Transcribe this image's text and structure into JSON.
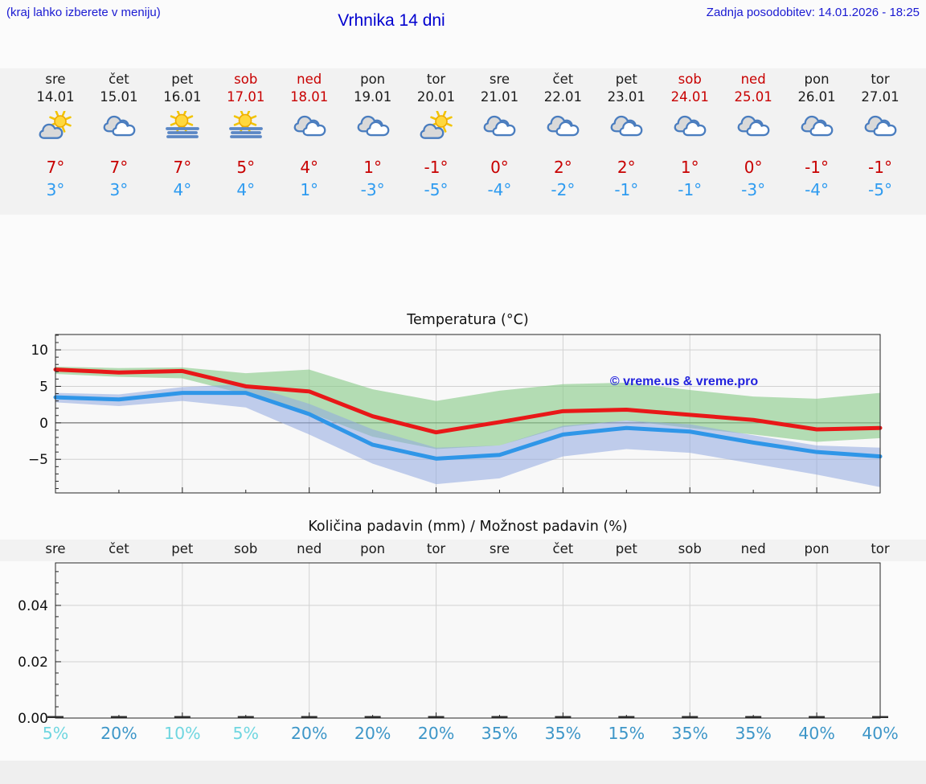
{
  "header": {
    "hint": "(kraj lahko izberete v meniju)",
    "title": "Vrhnika 14 dni",
    "last_update": "Zadnja posodobitev: 14.01.2026 - 18:25"
  },
  "days": [
    {
      "name": "sre",
      "date": "14.01",
      "weekend": false,
      "icon": "partly-cloudy-icon",
      "tmax": "7°",
      "tmin": "3°"
    },
    {
      "name": "čet",
      "date": "15.01",
      "weekend": false,
      "icon": "cloudy-icon",
      "tmax": "7°",
      "tmin": "3°"
    },
    {
      "name": "pet",
      "date": "16.01",
      "weekend": false,
      "icon": "fog-sun-icon",
      "tmax": "7°",
      "tmin": "4°"
    },
    {
      "name": "sob",
      "date": "17.01",
      "weekend": true,
      "icon": "fog-sun-icon",
      "tmax": "5°",
      "tmin": "4°"
    },
    {
      "name": "ned",
      "date": "18.01",
      "weekend": true,
      "icon": "cloudy-icon",
      "tmax": "4°",
      "tmin": "1°"
    },
    {
      "name": "pon",
      "date": "19.01",
      "weekend": false,
      "icon": "cloudy-icon",
      "tmax": "1°",
      "tmin": "-3°"
    },
    {
      "name": "tor",
      "date": "20.01",
      "weekend": false,
      "icon": "partly-cloudy-icon",
      "tmax": "-1°",
      "tmin": "-5°"
    },
    {
      "name": "sre",
      "date": "21.01",
      "weekend": false,
      "icon": "cloudy-icon",
      "tmax": "0°",
      "tmin": "-4°"
    },
    {
      "name": "čet",
      "date": "22.01",
      "weekend": false,
      "icon": "cloudy-icon",
      "tmax": "2°",
      "tmin": "-2°"
    },
    {
      "name": "pet",
      "date": "23.01",
      "weekend": false,
      "icon": "cloudy-icon",
      "tmax": "2°",
      "tmin": "-1°"
    },
    {
      "name": "sob",
      "date": "24.01",
      "weekend": true,
      "icon": "cloudy-icon",
      "tmax": "1°",
      "tmin": "-1°"
    },
    {
      "name": "ned",
      "date": "25.01",
      "weekend": true,
      "icon": "cloudy-icon",
      "tmax": "0°",
      "tmin": "-3°"
    },
    {
      "name": "pon",
      "date": "26.01",
      "weekend": false,
      "icon": "cloudy-icon",
      "tmax": "-1°",
      "tmin": "-4°"
    },
    {
      "name": "tor",
      "date": "27.01",
      "weekend": false,
      "icon": "cloudy-icon",
      "tmax": "-1°",
      "tmin": "-5°"
    }
  ],
  "chart_data": [
    {
      "type": "line",
      "title": "Temperatura (°C)",
      "watermark": "© vreme.us & vreme.pro",
      "x_labels": [
        "sre",
        "čet",
        "pet",
        "sob",
        "ned",
        "pon",
        "tor",
        "sre",
        "čet",
        "pet",
        "sob",
        "ned",
        "pon",
        "tor"
      ],
      "ylim": [
        -9.6,
        12.1
      ],
      "yticks": [
        10,
        5,
        0,
        -5
      ],
      "grid": true,
      "series": [
        {
          "name": "temperatura max",
          "color": "#e81818",
          "values": [
            7.3,
            6.9,
            7.1,
            5.0,
            4.3,
            0.9,
            -1.3,
            0.1,
            1.6,
            1.8,
            1.1,
            0.4,
            -0.9,
            -0.7
          ]
        },
        {
          "name": "temperatura min",
          "color": "#2f96e8",
          "values": [
            3.5,
            3.2,
            4.1,
            4.1,
            1.2,
            -3.0,
            -4.9,
            -4.4,
            -1.6,
            -0.7,
            -1.2,
            -2.7,
            -4.0,
            -4.6
          ]
        }
      ],
      "bands": [
        {
          "name": "max range",
          "color": "#86ca86",
          "opacity": 0.6,
          "upper": [
            7.7,
            7.5,
            7.6,
            6.8,
            7.3,
            4.6,
            3.0,
            4.4,
            5.3,
            5.5,
            4.5,
            3.6,
            3.3,
            4.1
          ],
          "lower": [
            6.7,
            6.3,
            6.1,
            3.9,
            1.4,
            -1.9,
            -3.6,
            -3.1,
            -0.6,
            0.3,
            -0.7,
            -1.6,
            -2.6,
            -2.1
          ]
        },
        {
          "name": "min range",
          "color": "#8fa8e0",
          "opacity": 0.55,
          "upper": [
            4.1,
            3.9,
            4.9,
            5.3,
            2.6,
            -0.9,
            -3.4,
            -3.1,
            -0.4,
            0.3,
            -0.2,
            -1.7,
            -3.1,
            -3.4
          ],
          "lower": [
            2.8,
            2.3,
            3.0,
            2.1,
            -1.6,
            -5.6,
            -8.4,
            -7.6,
            -4.6,
            -3.6,
            -4.1,
            -5.6,
            -7.1,
            -8.8
          ]
        }
      ]
    },
    {
      "type": "bar",
      "title": "Količina padavin (mm) / Možnost padavin (%)",
      "x_labels": [
        "sre",
        "čet",
        "pet",
        "sob",
        "ned",
        "pon",
        "tor",
        "sre",
        "čet",
        "pet",
        "sob",
        "ned",
        "pon",
        "tor"
      ],
      "ylim": [
        0,
        0.0551
      ],
      "yticks": [
        "0.00",
        "0.02",
        "0.04"
      ],
      "grid": true,
      "values": [
        0,
        0,
        0,
        0,
        0,
        0,
        0,
        0,
        0,
        0,
        0,
        0,
        0,
        0
      ],
      "probabilities": [
        "5%",
        "20%",
        "10%",
        "5%",
        "20%",
        "20%",
        "20%",
        "35%",
        "35%",
        "15%",
        "35%",
        "35%",
        "40%",
        "40%"
      ],
      "prob_low_threshold": 10
    }
  ],
  "colors": {
    "header_text": "#1a1ad2",
    "weekend": "#c80000",
    "tmax": "#c80000",
    "tmin": "#2e9bf0",
    "prob_low": "#6fd6e0",
    "prob_high": "#3d96c8",
    "grid": "#d2d2d2",
    "zero_line": "#555555",
    "frame": "#262626",
    "plot_bg": "#f8f8f8",
    "bar": "#2e2e2e"
  }
}
